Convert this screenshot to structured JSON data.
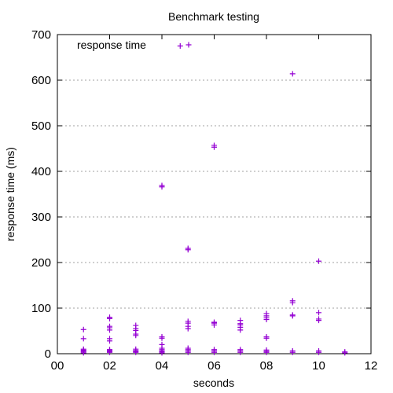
{
  "chart_data": {
    "type": "scatter",
    "title": "Benchmark testing",
    "xlabel": "seconds",
    "ylabel": "response time (ms)",
    "xlim": [
      0,
      12
    ],
    "ylim": [
      0,
      700
    ],
    "xticks": [
      0,
      2,
      4,
      6,
      8,
      10,
      12
    ],
    "xtick_labels": [
      "00",
      "02",
      "04",
      "06",
      "08",
      "10",
      "12"
    ],
    "yticks": [
      0,
      100,
      200,
      300,
      400,
      500,
      600,
      700
    ],
    "ytick_labels": [
      "0",
      "100",
      "200",
      "300",
      "400",
      "500",
      "600",
      "700"
    ],
    "grid": true,
    "legend": "top-left",
    "marker": "plus",
    "color": "#9400d3",
    "series": [
      {
        "name": "response time",
        "points": [
          [
            1,
            2
          ],
          [
            1,
            4
          ],
          [
            1,
            6
          ],
          [
            1,
            8
          ],
          [
            1,
            10
          ],
          [
            1,
            33
          ],
          [
            1,
            53
          ],
          [
            2,
            3
          ],
          [
            2,
            5
          ],
          [
            2,
            7
          ],
          [
            2,
            9
          ],
          [
            2,
            28
          ],
          [
            2,
            33
          ],
          [
            2,
            52
          ],
          [
            2,
            57
          ],
          [
            2,
            60
          ],
          [
            2,
            77
          ],
          [
            2,
            80
          ],
          [
            3,
            3
          ],
          [
            3,
            5
          ],
          [
            3,
            7
          ],
          [
            3,
            10
          ],
          [
            3,
            40
          ],
          [
            3,
            43
          ],
          [
            3,
            51
          ],
          [
            3,
            55
          ],
          [
            3,
            62
          ],
          [
            4,
            2
          ],
          [
            4,
            4
          ],
          [
            4,
            6
          ],
          [
            4,
            9
          ],
          [
            4,
            12
          ],
          [
            4,
            20
          ],
          [
            4,
            34
          ],
          [
            4,
            37
          ],
          [
            4,
            366
          ],
          [
            4,
            369
          ],
          [
            4.7,
            675
          ],
          [
            5,
            3
          ],
          [
            5,
            6
          ],
          [
            5,
            9
          ],
          [
            5,
            12
          ],
          [
            5,
            55
          ],
          [
            5,
            60
          ],
          [
            5,
            67
          ],
          [
            5,
            71
          ],
          [
            5,
            228
          ],
          [
            5,
            231
          ],
          [
            6,
            3
          ],
          [
            6,
            6
          ],
          [
            6,
            9
          ],
          [
            6,
            63
          ],
          [
            6,
            67
          ],
          [
            6,
            69
          ],
          [
            6,
            453
          ],
          [
            6,
            457
          ],
          [
            7,
            3
          ],
          [
            7,
            6
          ],
          [
            7,
            9
          ],
          [
            7,
            52
          ],
          [
            7,
            58
          ],
          [
            7,
            63
          ],
          [
            7,
            66
          ],
          [
            7,
            73
          ],
          [
            8,
            3
          ],
          [
            8,
            5
          ],
          [
            8,
            8
          ],
          [
            8,
            34
          ],
          [
            8,
            37
          ],
          [
            8,
            75
          ],
          [
            8,
            79
          ],
          [
            8,
            83
          ],
          [
            8,
            88
          ],
          [
            9,
            3
          ],
          [
            9,
            6
          ],
          [
            9,
            83
          ],
          [
            9,
            85
          ],
          [
            9,
            112
          ],
          [
            9,
            116
          ],
          [
            9,
            614
          ],
          [
            10,
            3
          ],
          [
            10,
            6
          ],
          [
            10,
            73
          ],
          [
            10,
            76
          ],
          [
            10,
            90
          ],
          [
            10,
            203
          ],
          [
            11,
            2
          ],
          [
            11,
            4
          ]
        ]
      }
    ]
  }
}
